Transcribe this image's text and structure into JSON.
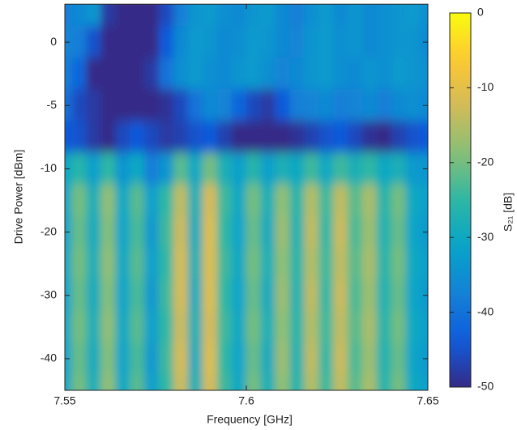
{
  "chart_data": {
    "type": "heatmap",
    "xlabel": "Frequency [GHz]",
    "ylabel": "Drive Power [dBm]",
    "colorbar_label": "S₂₁ [dB]",
    "colormap": "parula",
    "clim": [
      -50,
      0
    ],
    "cticks": [
      0,
      -10,
      -20,
      -30,
      -40,
      -50
    ],
    "xlim": [
      7.55,
      7.65
    ],
    "xticks": [
      7.55,
      7.6,
      7.65
    ],
    "ylim": [
      3,
      -45
    ],
    "yticks": [
      0,
      -5,
      -10,
      -20,
      -30,
      -40
    ],
    "x": [
      7.55,
      7.554,
      7.558,
      7.562,
      7.566,
      7.57,
      7.574,
      7.578,
      7.582,
      7.586,
      7.59,
      7.594,
      7.598,
      7.602,
      7.606,
      7.61,
      7.614,
      7.618,
      7.622,
      7.626,
      7.63,
      7.634,
      7.638,
      7.642,
      7.646,
      7.65
    ],
    "y": [
      2.5,
      0,
      -2.5,
      -5,
      -7.5,
      -10,
      -15,
      -20,
      -25,
      -30,
      -35,
      -40,
      -45
    ],
    "z": [
      [
        -38,
        -36,
        -34,
        -48,
        -50,
        -50,
        -50,
        -46,
        -38,
        -34,
        -33,
        -35,
        -36,
        -34,
        -33,
        -36,
        -38,
        -35,
        -33,
        -36,
        -34,
        -36,
        -35,
        -34,
        -33,
        -35
      ],
      [
        -37,
        -38,
        -45,
        -50,
        -50,
        -50,
        -50,
        -44,
        -36,
        -33,
        -34,
        -36,
        -35,
        -33,
        -34,
        -36,
        -37,
        -34,
        -33,
        -35,
        -34,
        -36,
        -35,
        -34,
        -34,
        -36
      ],
      [
        -38,
        -42,
        -50,
        -50,
        -50,
        -50,
        -48,
        -40,
        -35,
        -33,
        -35,
        -36,
        -34,
        -33,
        -35,
        -37,
        -36,
        -34,
        -33,
        -35,
        -36,
        -34,
        -35,
        -33,
        -34,
        -35
      ],
      [
        -40,
        -46,
        -48,
        -50,
        -50,
        -50,
        -50,
        -49,
        -46,
        -40,
        -36,
        -37,
        -42,
        -46,
        -48,
        -44,
        -38,
        -37,
        -36,
        -38,
        -37,
        -36,
        -38,
        -36,
        -35,
        -36
      ],
      [
        -44,
        -45,
        -48,
        -50,
        -46,
        -44,
        -46,
        -48,
        -47,
        -45,
        -44,
        -47,
        -50,
        -50,
        -50,
        -50,
        -49,
        -47,
        -45,
        -44,
        -46,
        -49,
        -50,
        -47,
        -45,
        -44
      ],
      [
        -30,
        -26,
        -32,
        -25,
        -34,
        -30,
        -38,
        -34,
        -22,
        -30,
        -20,
        -28,
        -32,
        -26,
        -32,
        -28,
        -30,
        -24,
        -30,
        -24,
        -28,
        -25,
        -30,
        -28,
        -33,
        -34
      ],
      [
        -30,
        -20,
        -28,
        -18,
        -30,
        -22,
        -32,
        -25,
        -14,
        -28,
        -12,
        -24,
        -30,
        -20,
        -28,
        -18,
        -26,
        -15,
        -24,
        -14,
        -22,
        -16,
        -26,
        -20,
        -30,
        -32
      ],
      [
        -31,
        -21,
        -29,
        -19,
        -31,
        -23,
        -33,
        -24,
        -13,
        -29,
        -11,
        -25,
        -31,
        -21,
        -29,
        -17,
        -27,
        -14,
        -25,
        -13,
        -23,
        -17,
        -27,
        -21,
        -31,
        -33
      ],
      [
        -30,
        -20,
        -28,
        -18,
        -30,
        -22,
        -32,
        -25,
        -12,
        -28,
        -11,
        -24,
        -30,
        -20,
        -28,
        -18,
        -26,
        -15,
        -24,
        -14,
        -22,
        -16,
        -26,
        -20,
        -30,
        -32
      ],
      [
        -31,
        -21,
        -29,
        -19,
        -31,
        -23,
        -33,
        -24,
        -12,
        -29,
        -11,
        -25,
        -31,
        -21,
        -29,
        -17,
        -27,
        -14,
        -25,
        -13,
        -23,
        -17,
        -27,
        -21,
        -31,
        -33
      ],
      [
        -30,
        -20,
        -28,
        -18,
        -30,
        -22,
        -32,
        -25,
        -13,
        -28,
        -12,
        -24,
        -30,
        -20,
        -28,
        -18,
        -26,
        -15,
        -24,
        -14,
        -22,
        -16,
        -26,
        -20,
        -30,
        -32
      ],
      [
        -31,
        -21,
        -29,
        -19,
        -31,
        -23,
        -33,
        -24,
        -12,
        -29,
        -11,
        -25,
        -31,
        -21,
        -29,
        -17,
        -27,
        -14,
        -25,
        -13,
        -23,
        -17,
        -27,
        -21,
        -31,
        -33
      ],
      [
        -30,
        -20,
        -28,
        -18,
        -30,
        -22,
        -32,
        -25,
        -13,
        -28,
        -12,
        -24,
        -30,
        -20,
        -28,
        -18,
        -26,
        -15,
        -24,
        -14,
        -22,
        -16,
        -26,
        -20,
        -30,
        -32
      ]
    ]
  }
}
